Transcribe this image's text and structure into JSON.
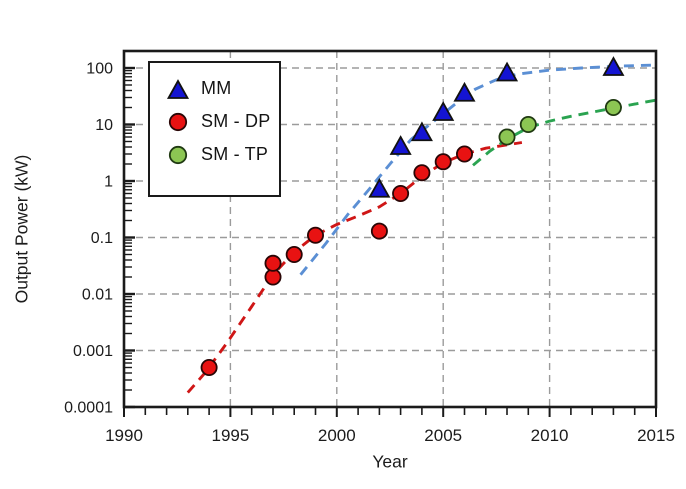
{
  "chart_data": {
    "type": "scatter",
    "title": "",
    "xlabel": "Year",
    "ylabel": "Output Power (kW)",
    "x_axis": {
      "min": 1990,
      "max": 2015,
      "major_ticks": [
        1990,
        1995,
        2000,
        2005,
        2010,
        2015
      ],
      "minor_tick_step": 1,
      "gridlines": [
        1995,
        2000,
        2005,
        2010
      ]
    },
    "y_axis": {
      "scale": "log",
      "min": 0.0001,
      "max": 200,
      "tick_values": [
        100,
        10,
        1,
        0.1,
        0.01,
        0.001,
        0.0001
      ],
      "tick_labels": [
        "100",
        "10",
        "1",
        "0.1",
        "0.01",
        "0.001",
        "0.0001"
      ],
      "gridline_values": [
        100,
        10,
        1,
        0.1,
        0.01,
        0.001
      ]
    },
    "grid": {
      "color": "#9b9b9b",
      "dash": "7 5"
    },
    "legend_position": "upper-left",
    "series": [
      {
        "name": "MM",
        "marker": "triangle",
        "color": "#1414d2",
        "edge": "#111111",
        "points": [
          [
            2002,
            0.7
          ],
          [
            2003,
            4
          ],
          [
            2004,
            7
          ],
          [
            2005,
            16
          ],
          [
            2006,
            35
          ],
          [
            2008,
            80
          ],
          [
            2013,
            100
          ]
        ],
        "trend": {
          "color": "#5b8fd4",
          "points": [
            [
              1998.3,
              0.022
            ],
            [
              1999.5,
              0.08
            ],
            [
              2000.5,
              0.25
            ],
            [
              2001.5,
              0.7
            ],
            [
              2002.5,
              2
            ],
            [
              2003.5,
              5.5
            ],
            [
              2004.5,
              11
            ],
            [
              2005.5,
              22
            ],
            [
              2006.5,
              42
            ],
            [
              2007.5,
              62
            ],
            [
              2008.5,
              78
            ],
            [
              2010,
              92
            ],
            [
              2011.5,
              100
            ],
            [
              2013,
              107
            ],
            [
              2015,
              113
            ]
          ]
        }
      },
      {
        "name": "SM - DP",
        "marker": "circle",
        "color": "#e81212",
        "edge": "#2a0606",
        "points": [
          [
            1994,
            0.0005
          ],
          [
            1997,
            0.02
          ],
          [
            1997,
            0.035
          ],
          [
            1998,
            0.05
          ],
          [
            1999,
            0.11
          ],
          [
            2002,
            0.13
          ],
          [
            2003,
            0.6
          ],
          [
            2004,
            1.4
          ],
          [
            2005,
            2.2
          ],
          [
            2006,
            3
          ]
        ],
        "trend": {
          "color": "#cf1616",
          "points": [
            [
              1993,
              0.00018
            ],
            [
              1993.8,
              0.0004
            ],
            [
              1994.8,
              0.0013
            ],
            [
              1996,
              0.006
            ],
            [
              1997,
              0.022
            ],
            [
              1998,
              0.055
            ],
            [
              1999,
              0.11
            ],
            [
              2000,
              0.17
            ],
            [
              2001,
              0.24
            ],
            [
              2002,
              0.35
            ],
            [
              2003,
              0.6
            ],
            [
              2004,
              1.2
            ],
            [
              2005,
              2.1
            ],
            [
              2006,
              3
            ],
            [
              2007,
              3.8
            ],
            [
              2008.7,
              4.8
            ]
          ]
        }
      },
      {
        "name": "SM - TP",
        "marker": "circle",
        "color": "#8cc653",
        "edge": "#203a12",
        "points": [
          [
            2008,
            6
          ],
          [
            2009,
            10
          ],
          [
            2013,
            20
          ]
        ],
        "trend": {
          "color": "#2aa350",
          "points": [
            [
              2006.4,
              1.9
            ],
            [
              2007.2,
              3.4
            ],
            [
              2008,
              5.5
            ],
            [
              2009,
              8.8
            ],
            [
              2010,
              11.5
            ],
            [
              2011,
              14
            ],
            [
              2012,
              16.5
            ],
            [
              2013,
              19.5
            ],
            [
              2014,
              23
            ],
            [
              2015,
              27
            ]
          ]
        }
      }
    ]
  }
}
